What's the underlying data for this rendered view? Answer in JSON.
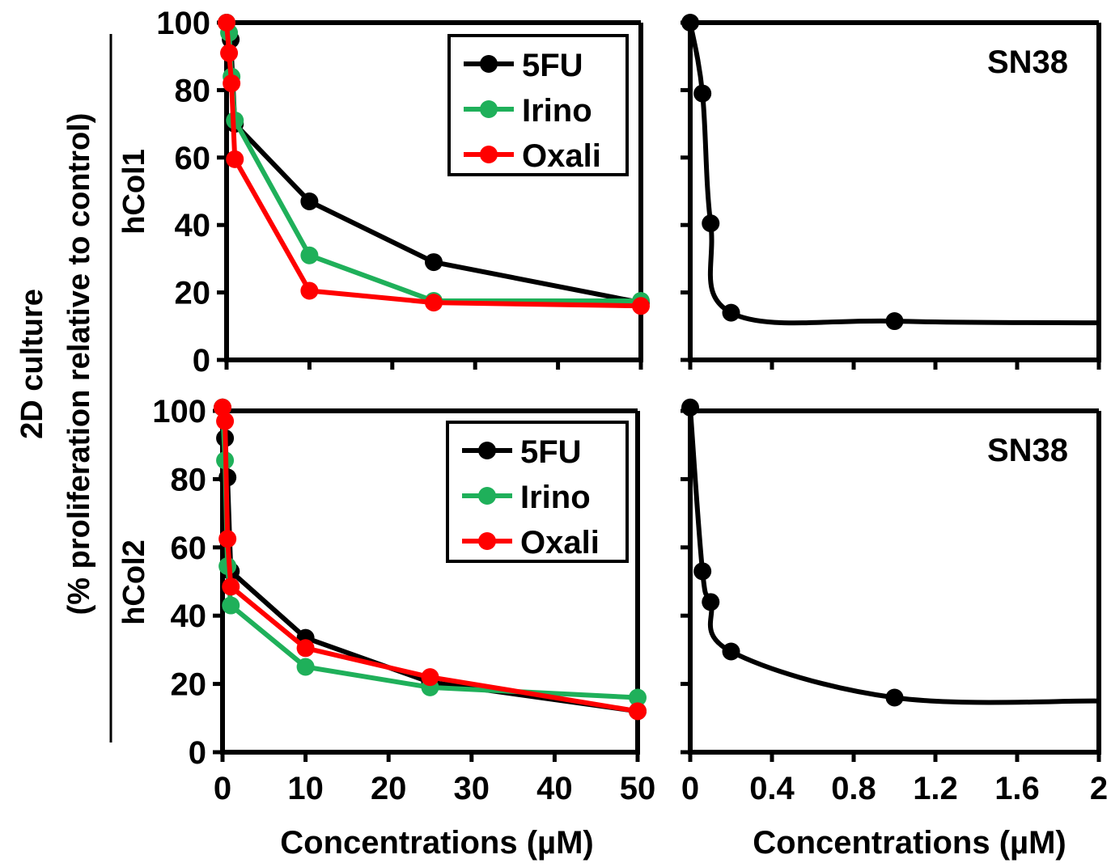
{
  "figure": {
    "ylabel_line1": "2D culture",
    "ylabel_line2": "(% proliferation relative to control)",
    "row_labels": [
      "hCol1",
      "hCol2"
    ],
    "xlabel": "Concentrations (µM)"
  },
  "colors": {
    "5FU": "#000000",
    "Irino": "#1fb05a",
    "Oxali": "#ff0000",
    "SN38": "#000000"
  },
  "chart_data": [
    {
      "type": "line",
      "row_label": "hCol1",
      "title": "",
      "xlabel": "Concentrations (µM)",
      "ylabel": "",
      "xlim": [
        0,
        50
      ],
      "ylim": [
        0,
        100
      ],
      "xticks": [
        0,
        10,
        20,
        30,
        40,
        50
      ],
      "xtick_labels": [
        "",
        "",
        "",
        "",
        "",
        ""
      ],
      "yticks": [
        0,
        20,
        40,
        60,
        80,
        100
      ],
      "ytick_labels": [
        "0",
        "20",
        "40",
        "60",
        "80",
        "100"
      ],
      "legend": "top-right",
      "series": [
        {
          "name": "5FU",
          "x": [
            0,
            0.5,
            1,
            10,
            25,
            50
          ],
          "y": [
            100,
            95,
            70,
            47,
            29,
            17
          ]
        },
        {
          "name": "Irino",
          "x": [
            0,
            0.3,
            0.6,
            1,
            10,
            25,
            50
          ],
          "y": [
            100,
            97,
            84,
            71,
            31,
            17.5,
            17.5
          ]
        },
        {
          "name": "Oxali",
          "x": [
            0,
            0.3,
            0.6,
            1,
            10,
            25,
            50
          ],
          "y": [
            100,
            91,
            82,
            59.5,
            20.5,
            17,
            16
          ]
        }
      ]
    },
    {
      "type": "line",
      "row_label": "hCol1",
      "title": "SN38",
      "xlabel": "",
      "ylabel": "",
      "xlim": [
        0,
        2
      ],
      "ylim": [
        0,
        100
      ],
      "xticks": [
        0,
        0.4,
        0.8,
        1.2,
        1.6,
        2
      ],
      "xtick_labels": [
        "",
        "",
        "",
        "",
        "",
        ""
      ],
      "yticks": [
        0,
        20,
        40,
        60,
        80,
        100
      ],
      "ytick_labels": [
        "",
        "",
        "",
        "",
        "",
        ""
      ],
      "series": [
        {
          "name": "SN38",
          "x": [
            0,
            0.06,
            0.1,
            0.2,
            1,
            2
          ],
          "y": [
            100,
            79,
            40.5,
            14,
            11.5,
            11
          ],
          "marker_count": 5
        }
      ]
    },
    {
      "type": "line",
      "row_label": "hCol2",
      "title": "",
      "xlabel": "Concentrations (µM)",
      "ylabel": "",
      "xlim": [
        0,
        50
      ],
      "ylim": [
        0,
        100
      ],
      "xticks": [
        0,
        10,
        20,
        30,
        40,
        50
      ],
      "xtick_labels": [
        "0",
        "10",
        "20",
        "30",
        "40",
        "50"
      ],
      "yticks": [
        0,
        20,
        40,
        60,
        80,
        100
      ],
      "ytick_labels": [
        "0",
        "20",
        "40",
        "60",
        "80",
        "100"
      ],
      "legend": "top-right",
      "series": [
        {
          "name": "5FU",
          "x": [
            0,
            0.3,
            0.6,
            1,
            10,
            25,
            50
          ],
          "y": [
            101,
            92,
            80.5,
            53,
            33.5,
            20.5,
            12
          ]
        },
        {
          "name": "Irino",
          "x": [
            0,
            0.3,
            0.6,
            1,
            10,
            25,
            50
          ],
          "y": [
            101,
            85.5,
            54.5,
            43,
            25,
            19,
            16
          ]
        },
        {
          "name": "Oxali",
          "x": [
            0,
            0.3,
            0.6,
            1,
            10,
            25,
            50
          ],
          "y": [
            101,
            97,
            62.5,
            48.5,
            30.5,
            22,
            12
          ]
        }
      ]
    },
    {
      "type": "line",
      "row_label": "hCol2",
      "title": "SN38",
      "xlabel": "Concentrations (µM)",
      "ylabel": "",
      "xlim": [
        0,
        2
      ],
      "ylim": [
        0,
        100
      ],
      "xticks": [
        0,
        0.4,
        0.8,
        1.2,
        1.6,
        2
      ],
      "xtick_labels": [
        "0",
        "0.4",
        "0.8",
        "1.2",
        "1.6",
        "2"
      ],
      "yticks": [
        0,
        20,
        40,
        60,
        80,
        100
      ],
      "ytick_labels": [
        "",
        "",
        "",
        "",
        "",
        ""
      ],
      "series": [
        {
          "name": "SN38",
          "x": [
            0,
            0.06,
            0.1,
            0.2,
            1,
            2
          ],
          "y": [
            101,
            53,
            44,
            29.5,
            16,
            15
          ],
          "marker_count": 5
        }
      ]
    }
  ]
}
